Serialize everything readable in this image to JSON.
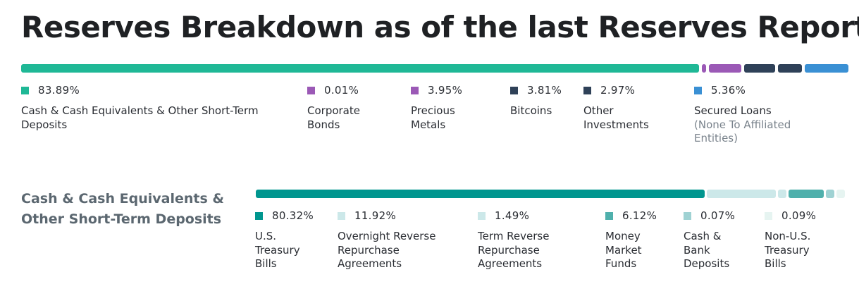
{
  "title": "Reserves Breakdown as of the last Reserves Report",
  "chart_data": [
    {
      "type": "bar",
      "stacked": true,
      "categories": [
        "Cash & Cash Equivalents & Other Short-Term Deposits",
        "Corporate Bonds",
        "Precious Metals",
        "Bitcoins",
        "Other Investments",
        "Secured Loans"
      ],
      "values": [
        83.89,
        0.01,
        3.95,
        3.81,
        2.97,
        5.36
      ],
      "labels": [
        "83.89%",
        "0.01%",
        "3.95%",
        "3.81%",
        "2.97%",
        "5.36%"
      ],
      "sublabels": [
        "",
        "",
        "",
        "",
        "",
        "(None To Affiliated Entities)"
      ],
      "colors": [
        "#1fb896",
        "#9b59b6",
        "#9b59b6",
        "#2f4158",
        "#2f4158",
        "#3a90d4"
      ]
    },
    {
      "type": "bar",
      "stacked": true,
      "section_label": "Cash & Cash Equivalents & Other Short-Term Deposits",
      "categories": [
        "U.S. Treasury Bills",
        "Overnight Reverse Repurchase Agreements",
        "Term Reverse Repurchase Agreements",
        "Money Market Funds",
        "Cash & Bank Deposits",
        "Non-U.S. Treasury Bills"
      ],
      "values": [
        80.32,
        11.92,
        1.49,
        6.12,
        0.07,
        0.09
      ],
      "labels": [
        "80.32%",
        "11.92%",
        "1.49%",
        "6.12%",
        "0.07%",
        "0.09%"
      ],
      "colors": [
        "#00968f",
        "#cce8e9",
        "#cce8e9",
        "#4fb0ac",
        "#9fd2d3",
        "#e6f4f1"
      ]
    }
  ]
}
